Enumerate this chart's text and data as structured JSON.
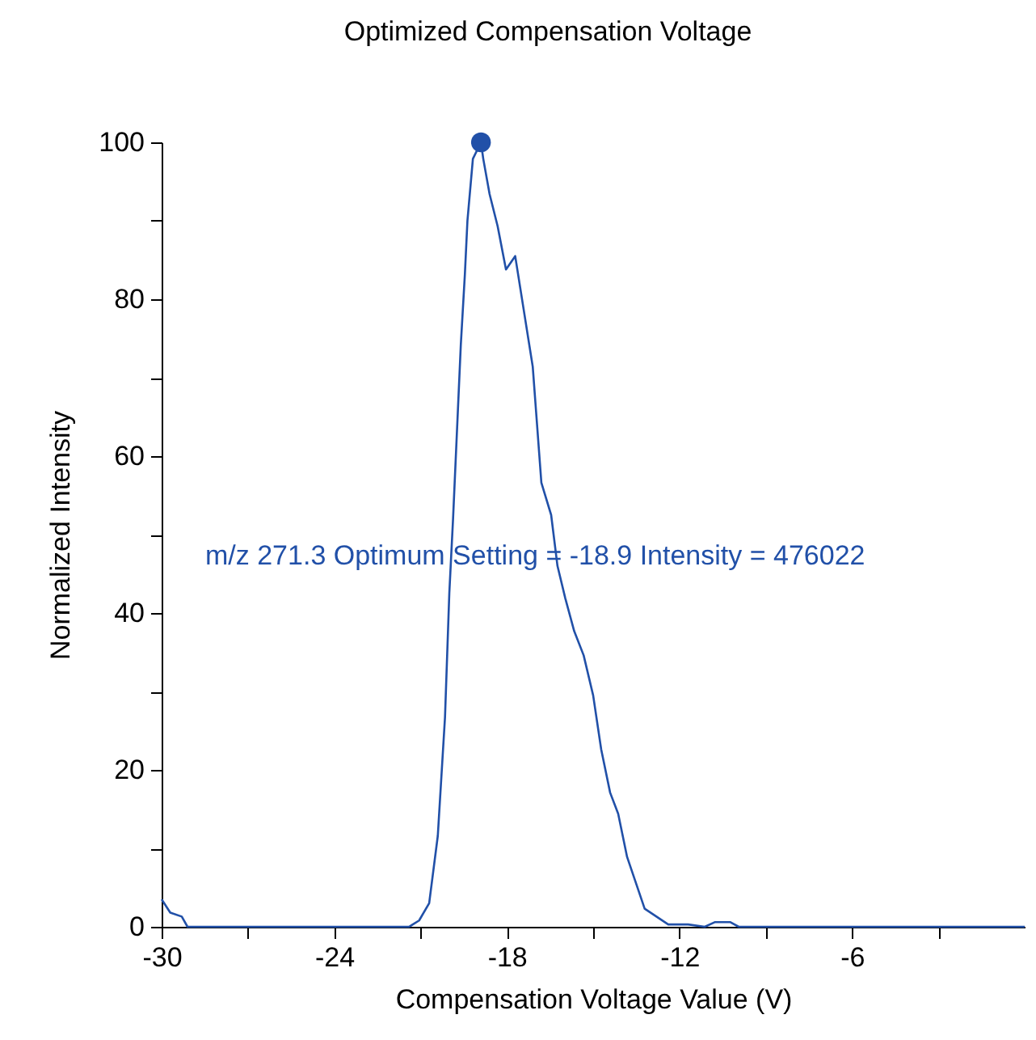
{
  "chart_data": {
    "type": "line",
    "title": "Optimized Compensation Voltage",
    "xlabel": "Compensation Voltage Value (V)",
    "ylabel": "Normalized Intensity",
    "annotations": [
      "m/z 271.3 Optimum Setting = -18.9 Intensity = 476022"
    ],
    "series": [
      {
        "color": "#2150a8",
        "x": [
          -30,
          -29.7,
          -29.3,
          -29.1,
          -26,
          -23,
          -21.4,
          -21.05,
          -20.7,
          -20.4,
          -20.15,
          -20.0,
          -19.87,
          -19.6,
          -19.46,
          -19.37,
          -19.18,
          -18.9,
          -18.82,
          -18.6,
          -18.32,
          -18.03,
          -17.71,
          -17.1,
          -16.8,
          -16.46,
          -16.24,
          -15.97,
          -15.66,
          -15.33,
          -15.0,
          -14.72,
          -14.41,
          -14.13,
          -13.82,
          -13.21,
          -12.39,
          -11.7,
          -11.12,
          -10.76,
          -10.24,
          -9.94,
          -6,
          -3,
          0
        ],
        "values": [
          3.5,
          1.8,
          1.3,
          0,
          0,
          0,
          0,
          0.8,
          3,
          11.6,
          26.7,
          42.5,
          52,
          74.2,
          83.1,
          90,
          97.9,
          100,
          97.9,
          93.4,
          89.3,
          83.8,
          85.5,
          71.4,
          56.6,
          52.5,
          46,
          41.9,
          37.7,
          34.6,
          29.5,
          22.6,
          17.1,
          14.4,
          8.9,
          2.3,
          0.3,
          0.3,
          0,
          0.6,
          0.6,
          0,
          0,
          0,
          0
        ]
      },
      {
        "type": "scatter",
        "color": "#2150a8",
        "x": [
          -18.9
        ],
        "values": [
          100
        ]
      }
    ],
    "xlim": [
      -30,
      0
    ],
    "xticks": [
      -30,
      {
        "value": -27,
        "label": null
      },
      -24,
      {
        "value": -21,
        "label": null
      },
      -18,
      {
        "value": -15,
        "label": null
      },
      -12,
      {
        "value": -9,
        "label": null
      },
      -6,
      {
        "value": -3,
        "label": null
      }
    ],
    "ylim": [
      0,
      100
    ],
    "yticks": [
      0,
      {
        "value": 10,
        "label": null
      },
      20,
      {
        "value": 30,
        "label": null
      },
      40,
      {
        "value": 50,
        "label": null
      },
      60,
      {
        "value": 70,
        "label": null
      },
      80,
      {
        "value": 90,
        "label": null
      },
      100
    ]
  }
}
